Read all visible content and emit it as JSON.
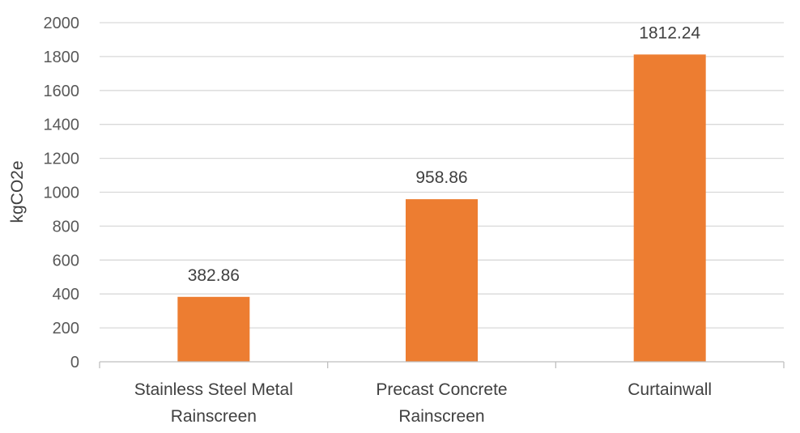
{
  "chart_data": {
    "type": "bar",
    "title": "",
    "xlabel": "",
    "ylabel": "kgCO2e",
    "ylim": [
      0,
      2000
    ],
    "yticks": [
      0,
      200,
      400,
      600,
      800,
      1000,
      1200,
      1400,
      1600,
      1800,
      2000
    ],
    "grid": true,
    "legend": "none",
    "categories": [
      [
        "Stainless Steel Metal",
        "Rainscreen"
      ],
      [
        "Precast Concrete",
        "Rainscreen"
      ],
      [
        "Curtainwall"
      ]
    ],
    "values": [
      382.86,
      958.86,
      1812.24
    ],
    "data_labels": [
      "382.86",
      "958.86",
      "1812.24"
    ],
    "colors": {
      "bar": "#ed7d31",
      "gridline": "#d9d9d9",
      "axis": "#bfbfbf"
    }
  }
}
